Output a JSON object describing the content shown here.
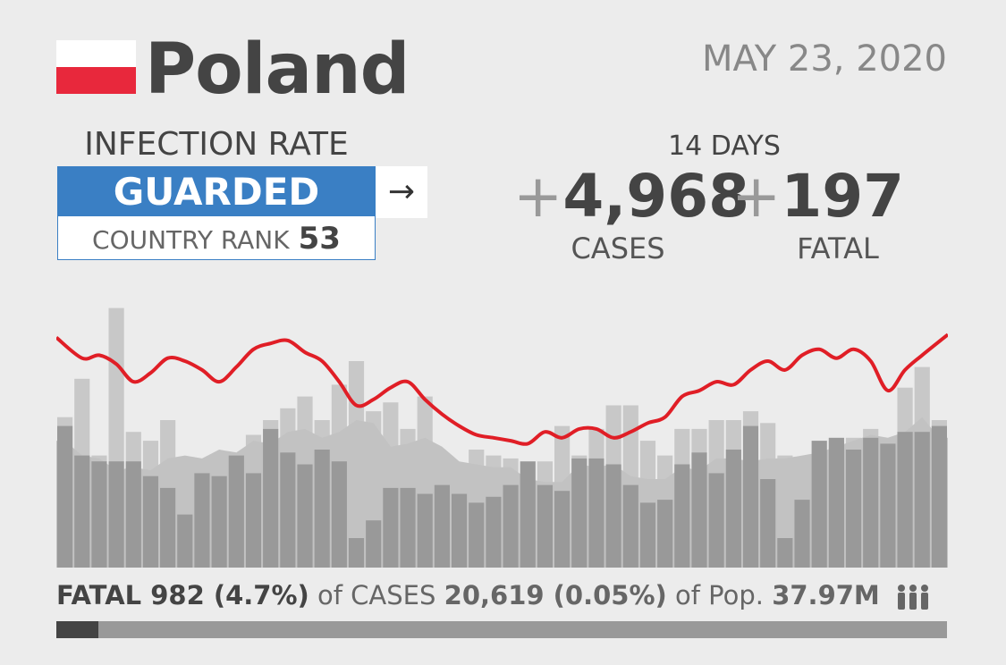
{
  "header": {
    "country": "Poland",
    "date": "MAY 23, 2020",
    "flag_colors": [
      "#ffffff",
      "#e8283c"
    ]
  },
  "infection": {
    "title": "INFECTION RATE",
    "level": "GUARDED",
    "level_color": "#3a7fc4",
    "trend_icon": "right-arrow-icon",
    "trend_glyph": "→",
    "rank_label": "COUNTRY RANK",
    "rank_value": "53"
  },
  "summary": {
    "period": "14 DAYS",
    "cases_plus": "+",
    "cases_value": "4,968",
    "cases_label": "CASES",
    "fatal_plus": "+",
    "fatal_value": "197",
    "fatal_label": "FATAL"
  },
  "footer": {
    "fatal_text": "FATAL 982 (4.7%)",
    "of_cases_label": "of CASES",
    "cases_text": "20,619 (0.05%)",
    "of_pop_label": "of Pop.",
    "pop_text": "37.97M",
    "people_icon": "people-icon",
    "fatal_share": 0.047
  },
  "chart_data": {
    "type": "bar",
    "ylim": [
      0,
      100
    ],
    "grid": false,
    "legend": "none",
    "series": [
      {
        "values": [
          51,
          64,
          38,
          88,
          46,
          43,
          50,
          30,
          35,
          22,
          36,
          45,
          50,
          54,
          58,
          50,
          62,
          70,
          53,
          56,
          47,
          58,
          33,
          34,
          40,
          38,
          37,
          29,
          36,
          48,
          38,
          47,
          55,
          55,
          43,
          38,
          47,
          47,
          50,
          50,
          53,
          49,
          38,
          34,
          38,
          43,
          44,
          47,
          38,
          61,
          68,
          50
        ],
        "color": "#c8c8c8"
      },
      {
        "values": [
          43,
          38,
          37,
          33,
          34,
          33,
          37,
          38,
          37,
          40,
          39,
          43,
          42,
          46,
          47,
          44,
          46,
          50,
          49,
          41,
          42,
          44,
          41,
          36,
          35,
          34,
          34,
          30,
          29,
          29,
          35,
          34,
          35,
          31,
          30,
          30,
          34,
          33,
          37,
          37,
          36,
          37,
          37,
          38,
          39,
          41,
          43,
          45,
          44,
          46,
          51,
          44
        ],
        "color": "#c2c2c2"
      },
      {
        "values": [
          48,
          38,
          36,
          36,
          36,
          31,
          27,
          18,
          32,
          31,
          38,
          32,
          47,
          39,
          35,
          40,
          36,
          10,
          16,
          27,
          27,
          25,
          28,
          25,
          22,
          24,
          28,
          36,
          28,
          26,
          37,
          37,
          35,
          28,
          22,
          23,
          35,
          39,
          32,
          40,
          48,
          30,
          10,
          23,
          43,
          44,
          40,
          44,
          42,
          46,
          46,
          48
        ],
        "color": "#999999"
      },
      {
        "values": [
          78,
          71,
          72,
          69,
          63,
          66,
          71,
          70,
          67,
          63,
          68,
          74,
          76,
          77,
          73,
          70,
          63,
          55,
          57,
          61,
          63,
          57,
          52,
          48,
          45,
          44,
          43,
          42,
          46,
          44,
          47,
          47,
          44,
          46,
          49,
          51,
          58,
          60,
          63,
          62,
          67,
          70,
          67,
          72,
          74,
          71,
          74,
          70,
          60,
          67,
          72,
          79
        ],
        "color": "#e01e26"
      },
      {
        "values": [
          79,
          70,
          71,
          66,
          94,
          65,
          63,
          57,
          48,
          70,
          75,
          66,
          65,
          58,
          50,
          43,
          40,
          44,
          58,
          34,
          42,
          44,
          48,
          48,
          31,
          42,
          53,
          50,
          78,
          62,
          63,
          51,
          46,
          37,
          48,
          53,
          54,
          50,
          48,
          49,
          64,
          58,
          65,
          52,
          47,
          42,
          52,
          49,
          40,
          39,
          45,
          53
        ],
        "color": "#c0c0c0"
      }
    ]
  }
}
